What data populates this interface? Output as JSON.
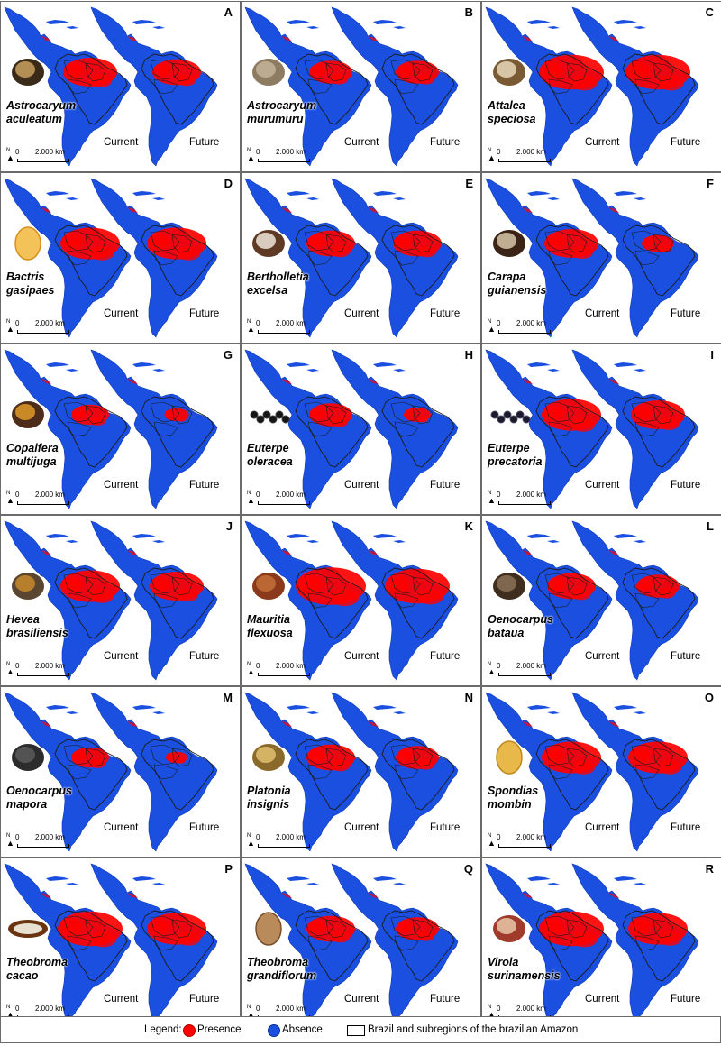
{
  "labels": {
    "current": "Current",
    "future": "Future"
  },
  "scale_bar": {
    "start": "0",
    "distance": "2.000 km",
    "north": "N"
  },
  "colors": {
    "presence": "#ff0000",
    "absence": "#1a4fe0",
    "boundary": "#1c1c1c"
  },
  "panels": [
    {
      "letter": "A",
      "genus": "Astrocaryum",
      "species": "aculeatum",
      "fruit_icon": "round-palm-fruit-cross-section-icon"
    },
    {
      "letter": "B",
      "genus": "Astrocaryum",
      "species": "murumuru",
      "fruit_icon": "oval-brown-seed-icon"
    },
    {
      "letter": "C",
      "genus": "Attalea",
      "species": "speciosa",
      "fruit_icon": "nut-cross-section-icon"
    },
    {
      "letter": "D",
      "genus": "Bactris",
      "species": "gasipaes",
      "fruit_icon": "orange-peach-palm-fruit-icon"
    },
    {
      "letter": "E",
      "genus": "Bertholletia",
      "species": "excelsa",
      "fruit_icon": "brazil-nut-icon"
    },
    {
      "letter": "F",
      "genus": "Carapa",
      "species": "guianensis",
      "fruit_icon": "andiroba-seed-icon"
    },
    {
      "letter": "G",
      "genus": "Copaifera",
      "species": "multijuga",
      "fruit_icon": "copaiba-pod-icon"
    },
    {
      "letter": "H",
      "genus": "Euterpe",
      "species": "oleracea",
      "fruit_icon": "acai-berries-icon"
    },
    {
      "letter": "I",
      "genus": "Euterpe",
      "species": "precatoria",
      "fruit_icon": "acai-bunch-icon"
    },
    {
      "letter": "J",
      "genus": "Hevea",
      "species": "brasiliensis",
      "fruit_icon": "rubber-tree-seed-icon"
    },
    {
      "letter": "K",
      "genus": "Mauritia",
      "species": "flexuosa",
      "fruit_icon": "buriti-scaly-fruit-icon"
    },
    {
      "letter": "L",
      "genus": "Oenocarpus",
      "species": "bataua",
      "fruit_icon": "bataua-fruit-icon"
    },
    {
      "letter": "M",
      "genus": "Oenocarpus",
      "species": "mapora",
      "fruit_icon": "dark-round-fruit-icon"
    },
    {
      "letter": "N",
      "genus": "Platonia",
      "species": "insignis",
      "fruit_icon": "bacuri-fruit-icon"
    },
    {
      "letter": "O",
      "genus": "Spondias",
      "species": "mombin",
      "fruit_icon": "yellow-mombin-fruit-icon"
    },
    {
      "letter": "P",
      "genus": "Theobroma",
      "species": "cacao",
      "fruit_icon": "open-cacao-pod-icon"
    },
    {
      "letter": "Q",
      "genus": "Theobroma",
      "species": "grandiflorum",
      "fruit_icon": "cupuacu-fruit-icon"
    },
    {
      "letter": "R",
      "genus": "Virola",
      "species": "surinamensis",
      "fruit_icon": "virola-seed-icon"
    }
  ],
  "legend": {
    "title": "Legend:",
    "presence": "Presence",
    "absence": "Absence",
    "boundary": "Brazil and subregions of the brazilian Amazon"
  }
}
